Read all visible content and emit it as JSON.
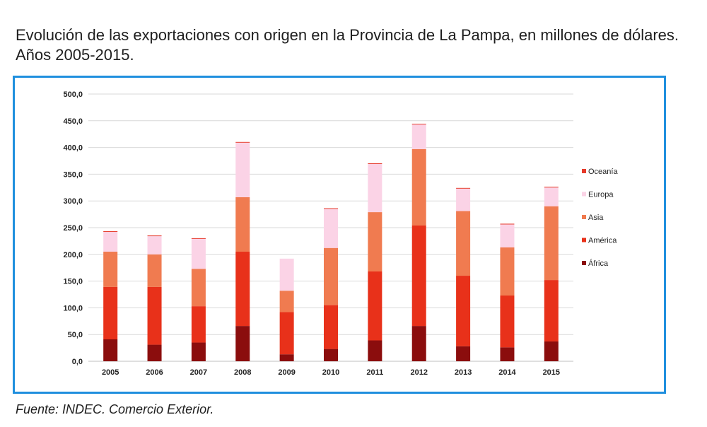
{
  "title": "Evolución de las exportaciones con origen en la Provincia de La Pampa, en millones de dólares. Años 2005-2015.",
  "source": "Fuente: INDEC. Comercio Exterior.",
  "chart_data": {
    "type": "bar",
    "stacked": true,
    "title": "",
    "xlabel": "",
    "ylabel": "",
    "ylim": [
      0,
      500
    ],
    "yticks": [
      "0,0",
      "50,0",
      "100,0",
      "150,0",
      "200,0",
      "250,0",
      "300,0",
      "350,0",
      "400,0",
      "450,0",
      "500,0"
    ],
    "grid": true,
    "legend_position": "right",
    "categories": [
      "2005",
      "2006",
      "2007",
      "2008",
      "2009",
      "2010",
      "2011",
      "2012",
      "2013",
      "2014",
      "2015"
    ],
    "series": [
      {
        "name": "África",
        "color": "#8b0d0d",
        "values": [
          41,
          31,
          35,
          66,
          13,
          23,
          39,
          66,
          28,
          26,
          37
        ]
      },
      {
        "name": "América",
        "color": "#e8311a",
        "values": [
          98,
          108,
          68,
          139,
          79,
          82,
          129,
          188,
          132,
          97,
          115
        ]
      },
      {
        "name": "Asia",
        "color": "#f07b50",
        "values": [
          66,
          61,
          70,
          102,
          40,
          107,
          111,
          143,
          121,
          90,
          138
        ]
      },
      {
        "name": "Europa",
        "color": "#fbd3e6",
        "values": [
          37,
          34,
          56,
          102,
          60,
          73,
          90,
          46,
          42,
          43,
          35
        ]
      },
      {
        "name": "Oceanía",
        "color": "#e63a2a",
        "values": [
          1,
          1,
          1,
          1,
          0,
          1,
          1,
          1,
          1,
          1,
          1
        ]
      }
    ],
    "legend_order": [
      "Oceanía",
      "Europa",
      "Asia",
      "América",
      "África"
    ]
  }
}
